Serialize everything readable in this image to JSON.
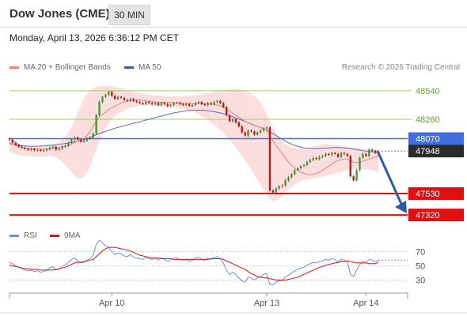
{
  "header": {
    "title": "Dow Jones (CME)",
    "interval": "30 MIN"
  },
  "datetime": "Monday, April 13, 2026 6:36:12 PM CET",
  "legend": {
    "ma20_bb": "MA 20 + Bollinger Bands",
    "ma50": "MA 50",
    "credit": "Research © 2026 Trading Central",
    "rsi": "RSI",
    "ma9": "9MA"
  },
  "colors": {
    "up": "#3a9a2c",
    "down": "#c01414",
    "bb_fill": "#fdd8d8",
    "ma20": "#f08080",
    "ma50": "#5b6fb0",
    "resistance": "#9ccf6f",
    "support": "#e01010",
    "pivot": "#3f6fe0",
    "current": "#2b2b2b",
    "arrow": "#2a5aa8",
    "rsi": "#6c8fe0"
  },
  "chart_data": [
    {
      "type": "candlestick",
      "title": "",
      "ylim": [
        47220,
        48710
      ],
      "x_ticks": [
        "Apr 10",
        "Apr 13",
        "Apr 14"
      ],
      "levels": [
        {
          "value": 48540,
          "label": "48540",
          "kind": "resistance"
        },
        {
          "value": 48260,
          "label": "48260",
          "kind": "resistance"
        },
        {
          "value": 48070,
          "label": "48070",
          "kind": "pivot"
        },
        {
          "value": 47948,
          "label": "47948",
          "kind": "current"
        },
        {
          "value": 47530,
          "label": "47530",
          "kind": "support"
        },
        {
          "value": 47320,
          "label": "47320",
          "kind": "support"
        }
      ],
      "close": [
        48060,
        48030,
        48010,
        47990,
        47980,
        47970,
        47960,
        47970,
        47955,
        47960,
        47950,
        47955,
        47965,
        47980,
        47990,
        47960,
        47970,
        47990,
        48000,
        48030,
        48060,
        48080,
        48060,
        48040,
        48050,
        48070,
        48080,
        48120,
        48300,
        48430,
        48480,
        48500,
        48530,
        48490,
        48460,
        48480,
        48470,
        48450,
        48440,
        48460,
        48440,
        48430,
        48420,
        48410,
        48430,
        48420,
        48410,
        48420,
        48400,
        48420,
        48410,
        48390,
        48400,
        48420,
        48420,
        48410,
        48400,
        48410,
        48390,
        48400,
        48420,
        48430,
        48410,
        48400,
        48420,
        48410,
        48430,
        48440,
        48420,
        48380,
        48300,
        48240,
        48260,
        48230,
        48190,
        48130,
        48100,
        48150,
        48140,
        48110,
        48130,
        48150,
        48170,
        48180,
        47560,
        47540,
        47580,
        47600,
        47610,
        47660,
        47690,
        47720,
        47760,
        47780,
        47800,
        47810,
        47840,
        47860,
        47880,
        47870,
        47890,
        47900,
        47920,
        47910,
        47930,
        47920,
        47890,
        47930,
        47920,
        47900,
        47700,
        47660,
        47760,
        47880,
        47920,
        47900,
        47960,
        47950,
        47930,
        47948
      ],
      "ma20": [
        48030,
        48015,
        48005,
        47995,
        47985,
        47978,
        47972,
        47970,
        47968,
        47968,
        47966,
        47966,
        47967,
        47970,
        47975,
        47980,
        47983,
        47988,
        47995,
        48005,
        48015,
        48030,
        48045,
        48060,
        48075,
        48100,
        48140,
        48190,
        48240,
        48280,
        48310,
        48330,
        48355,
        48375,
        48390,
        48405,
        48420,
        48430,
        48440,
        48445,
        48450,
        48452,
        48450,
        48445,
        48440,
        48437,
        48433,
        48430,
        48428,
        48427,
        48426,
        48425,
        48423,
        48422,
        48421,
        48420,
        48418,
        48417,
        48416,
        48415,
        48415,
        48415,
        48414,
        48412,
        48410,
        48408,
        48405,
        48400,
        48395,
        48380,
        48360,
        48340,
        48320,
        48300,
        48280,
        48260,
        48240,
        48225,
        48210,
        48200,
        48190,
        48180,
        48170,
        48150,
        48100,
        48050,
        48000,
        47960,
        47920,
        47880,
        47840,
        47810,
        47780,
        47760,
        47740,
        47730,
        47720,
        47715,
        47720,
        47730,
        47740,
        47760,
        47780,
        47800,
        47820,
        47840,
        47855,
        47865,
        47870,
        47870,
        47855,
        47840,
        47835,
        47840,
        47850,
        47860,
        47870,
        47880,
        47890,
        47900
      ],
      "ma50": [
        48020,
        48015,
        48010,
        48005,
        48000,
        47998,
        47996,
        47995,
        47995,
        47996,
        47997,
        47999,
        48001,
        48004,
        48007,
        48010,
        48014,
        48018,
        48022,
        48027,
        48032,
        48038,
        48045,
        48052,
        48060,
        48070,
        48082,
        48095,
        48108,
        48120,
        48132,
        48142,
        48152,
        48162,
        48172,
        48180,
        48188,
        48196,
        48204,
        48212,
        48220,
        48228,
        48236,
        48244,
        48252,
        48260,
        48268,
        48276,
        48284,
        48292,
        48300,
        48308,
        48315,
        48322,
        48328,
        48334,
        48339,
        48343,
        48346,
        48348,
        48349,
        48350,
        48349,
        48347,
        48344,
        48340,
        48335,
        48329,
        48322,
        48314,
        48305,
        48295,
        48285,
        48274,
        48262,
        48250,
        48238,
        48226,
        48214,
        48202,
        48190,
        48178,
        48166,
        48154,
        48136,
        48118,
        48100,
        48082,
        48064,
        48046,
        48030,
        48016,
        48004,
        47994,
        47986,
        47980,
        47976,
        47973,
        47972,
        47972,
        47973,
        47975,
        47977,
        47979,
        47981,
        47982,
        47982,
        47981,
        47979,
        47976,
        47972,
        47967,
        47962,
        47957,
        47952,
        47948,
        47944,
        47941,
        47938,
        47935
      ],
      "bb_upper": [
        48080,
        48060,
        48040,
        48025,
        48012,
        48004,
        47998,
        47995,
        47993,
        47992,
        47992,
        47993,
        47996,
        48002,
        48012,
        48024,
        48040,
        48062,
        48090,
        48130,
        48180,
        48250,
        48330,
        48400,
        48460,
        48510,
        48545,
        48565,
        48580,
        48588,
        48592,
        48592,
        48590,
        48586,
        48580,
        48572,
        48565,
        48557,
        48548,
        48540,
        48532,
        48525,
        48518,
        48512,
        48507,
        48503,
        48499,
        48496,
        48493,
        48491,
        48489,
        48488,
        48487,
        48486,
        48486,
        48486,
        48487,
        48489,
        48491,
        48494,
        48498,
        48502,
        48507,
        48512,
        48518,
        48524,
        48530,
        48536,
        48542,
        48548,
        48552,
        48556,
        48558,
        48558,
        48555,
        48550,
        48542,
        48530,
        48512,
        48490,
        48460,
        48420,
        48370,
        48310,
        48245,
        48180,
        48120,
        48080,
        48045,
        48020,
        48000,
        47985,
        47976,
        47972,
        47972,
        47975,
        47980,
        47988,
        47996,
        48004,
        48010,
        48014,
        48016,
        48016,
        48014,
        48010,
        48005,
        48000,
        47995,
        47990,
        47985,
        47980,
        47976,
        47972,
        47970,
        47968,
        47967,
        47966,
        47966,
        47966
      ],
      "bb_lower": [
        47940,
        47930,
        47920,
        47912,
        47905,
        47900,
        47896,
        47894,
        47893,
        47893,
        47893,
        47894,
        47896,
        47898,
        47895,
        47885,
        47870,
        47845,
        47815,
        47780,
        47740,
        47700,
        47680,
        47680,
        47700,
        47740,
        47800,
        47880,
        47960,
        48040,
        48110,
        48170,
        48220,
        48260,
        48290,
        48314,
        48334,
        48350,
        48364,
        48375,
        48384,
        48390,
        48394,
        48396,
        48396,
        48394,
        48392,
        48390,
        48388,
        48386,
        48384,
        48382,
        48380,
        48376,
        48372,
        48366,
        48360,
        48352,
        48344,
        48334,
        48322,
        48308,
        48292,
        48274,
        48254,
        48232,
        48208,
        48182,
        48154,
        48124,
        48092,
        48058,
        48022,
        47984,
        47944,
        47902,
        47858,
        47812,
        47764,
        47714,
        47664,
        47614,
        47566,
        47520,
        47480,
        47460,
        47460,
        47480,
        47510,
        47540,
        47570,
        47598,
        47622,
        47640,
        47654,
        47664,
        47672,
        47678,
        47682,
        47686,
        47690,
        47696,
        47704,
        47712,
        47720,
        47728,
        47736,
        47744,
        47752,
        47760,
        47766,
        47770,
        47772,
        47773,
        47772,
        47770,
        47766,
        47760,
        47752,
        47744
      ]
    },
    {
      "type": "line",
      "series": [
        {
          "name": "RSI"
        },
        {
          "name": "9MA"
        }
      ],
      "ylim": [
        15,
        85
      ],
      "y_ticks": [
        70,
        50,
        30
      ],
      "y_tick_labels": [
        "70",
        "50",
        "30"
      ],
      "rsi": [
        55,
        53,
        50,
        48,
        46,
        44,
        43,
        44,
        42,
        43,
        41,
        42,
        44,
        47,
        49,
        44,
        46,
        49,
        51,
        55,
        59,
        61,
        57,
        54,
        55,
        58,
        60,
        65,
        80,
        86,
        82,
        78,
        76,
        70,
        66,
        68,
        67,
        64,
        63,
        66,
        62,
        61,
        60,
        59,
        62,
        60,
        59,
        61,
        58,
        61,
        59,
        56,
        58,
        61,
        61,
        59,
        58,
        59,
        56,
        58,
        61,
        62,
        59,
        58,
        61,
        59,
        62,
        63,
        60,
        54,
        44,
        38,
        41,
        38,
        33,
        29,
        27,
        34,
        33,
        30,
        33,
        35,
        38,
        39,
        24,
        23,
        27,
        29,
        30,
        34,
        37,
        40,
        43,
        45,
        47,
        48,
        51,
        53,
        55,
        54,
        56,
        57,
        59,
        58,
        60,
        59,
        55,
        59,
        58,
        56,
        38,
        35,
        44,
        52,
        56,
        54,
        59,
        58,
        56,
        58
      ],
      "ma9": [
        51,
        50,
        49,
        48,
        47,
        46,
        46,
        45,
        45,
        45,
        44,
        44,
        44,
        44,
        44,
        45,
        46,
        47,
        48,
        50,
        52,
        54,
        55,
        55,
        56,
        57,
        58,
        59,
        63,
        67,
        71,
        74,
        76,
        76,
        76,
        75,
        74,
        73,
        72,
        71,
        69,
        67,
        65,
        64,
        63,
        62,
        61,
        61,
        61,
        60,
        60,
        60,
        60,
        59,
        59,
        59,
        59,
        59,
        59,
        59,
        59,
        59,
        59,
        59,
        59,
        60,
        60,
        60,
        60,
        59,
        57,
        55,
        53,
        51,
        49,
        47,
        45,
        42,
        39,
        37,
        35,
        34,
        33,
        33,
        32,
        31,
        30,
        30,
        30,
        30,
        31,
        32,
        33,
        34,
        36,
        38,
        40,
        42,
        44,
        46,
        48,
        49,
        51,
        52,
        53,
        54,
        55,
        56,
        56,
        57,
        56,
        55,
        54,
        54,
        54,
        54,
        53,
        53,
        53,
        55
      ]
    }
  ]
}
